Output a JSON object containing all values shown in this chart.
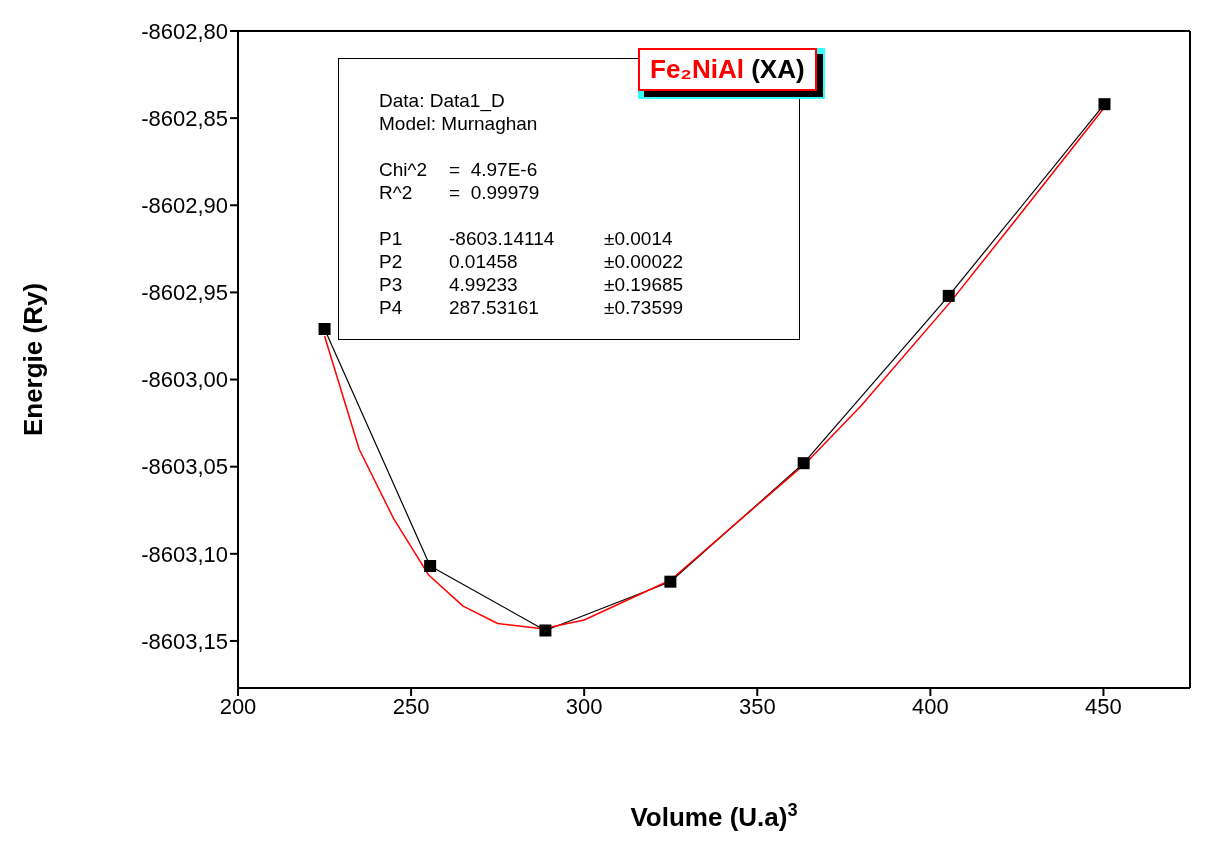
{
  "chart_data": {
    "type": "line",
    "title": "Fe₂NiAl (XA)",
    "xlabel": "Volume (U.a)$^{3}$",
    "ylabel": "Energie (Ry)",
    "annotations": [
      "Data: Data1_D",
      "Model: Murnaghan",
      "Chi^2\t=  4.97E-6",
      "R^2\t=  0.99979",
      "P1\t-8603.14114\t±0.0014",
      "P2\t0.01458\t±0.00022",
      "P3\t4.99233\t±0.19685",
      "P4\t287.53161\t±0.73599"
    ],
    "xlim": [
      200,
      475
    ],
    "xticks": [
      200,
      250,
      300,
      350,
      400,
      450
    ],
    "ylim": [
      -8603.177,
      -8602.8
    ],
    "yticks": [
      {
        "value": -8602.8,
        "label": "-8602,80"
      },
      {
        "value": -8602.85,
        "label": "-8602,85"
      },
      {
        "value": -8602.9,
        "label": "-8602,90"
      },
      {
        "value": -8602.95,
        "label": "-8602,95"
      },
      {
        "value": -8603.0,
        "label": "-8603,00"
      },
      {
        "value": -8603.05,
        "label": "-8603,05"
      },
      {
        "value": -8603.1,
        "label": "-8603,10"
      },
      {
        "value": -8603.15,
        "label": "-8603,15"
      }
    ],
    "grid": false,
    "line_style": "solid",
    "series": [
      {
        "color": "#000000",
        "marker": "square",
        "x": [
          225,
          255.5,
          288.8,
          324.9,
          363.4,
          405.3,
          450.3
        ],
        "values": [
          -8602.971,
          -8603.107,
          -8603.144,
          -8603.116,
          -8603.048,
          -8602.952,
          -8602.842
        ]
      },
      {
        "color": "#ff0000",
        "marker": "none",
        "x": [
          225,
          235,
          245,
          255,
          265,
          275,
          288,
          300,
          325,
          350,
          364,
          380,
          406,
          430,
          451
        ],
        "values": [
          -8602.975,
          -8603.04,
          -8603.08,
          -8603.112,
          -8603.13,
          -8603.14,
          -8603.143,
          -8603.138,
          -8603.115,
          -8603.072,
          -8603.048,
          -8603.015,
          -8602.955,
          -8602.895,
          -8602.842
        ]
      }
    ]
  }
}
